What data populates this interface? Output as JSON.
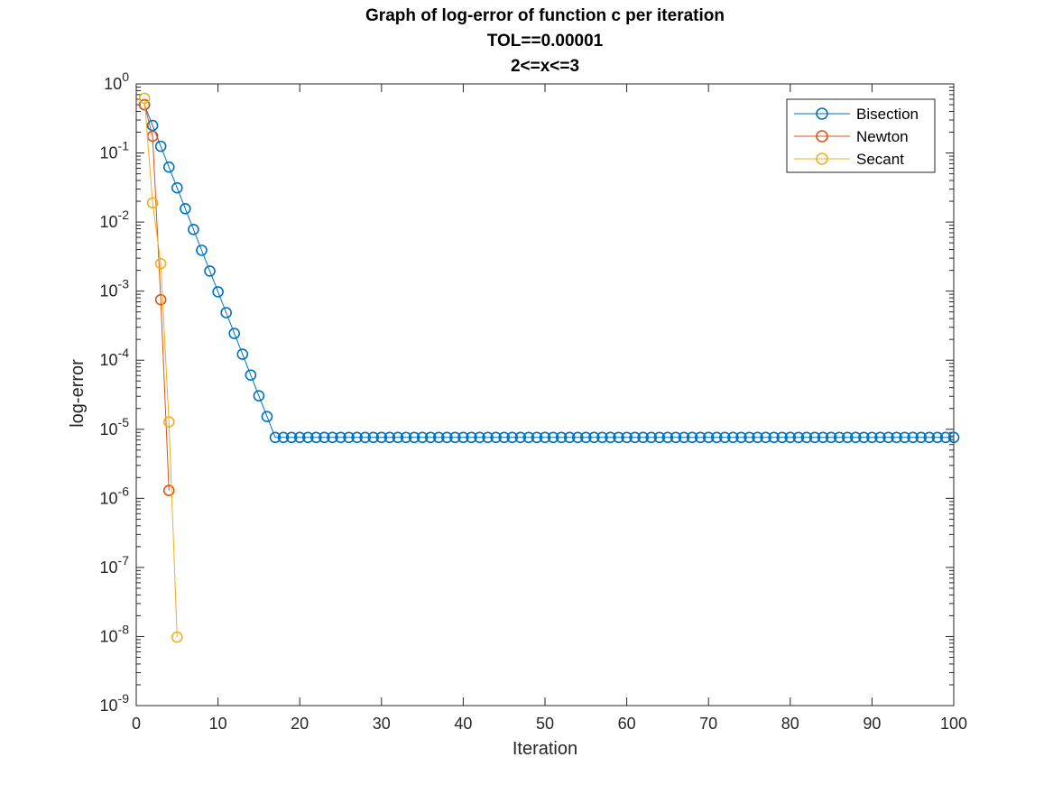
{
  "chart_data": {
    "type": "line",
    "title": [
      "Graph of log-error of function c per iteration",
      "TOL==0.00001",
      "2<=x<=3"
    ],
    "xlabel": "Iteration",
    "ylabel": "log-error",
    "xlim": [
      0,
      100
    ],
    "yscale": "log",
    "ylim": [
      1e-09,
      1
    ],
    "x_ticks": [
      0,
      10,
      20,
      30,
      40,
      50,
      60,
      70,
      80,
      90,
      100
    ],
    "y_ticks": [
      {
        "value": 1e-09,
        "base": "10",
        "exp": "-9"
      },
      {
        "value": 1e-08,
        "base": "10",
        "exp": "-8"
      },
      {
        "value": 1e-07,
        "base": "10",
        "exp": "-7"
      },
      {
        "value": 1e-06,
        "base": "10",
        "exp": "-6"
      },
      {
        "value": 1e-05,
        "base": "10",
        "exp": "-5"
      },
      {
        "value": 0.0001,
        "base": "10",
        "exp": "-4"
      },
      {
        "value": 0.001,
        "base": "10",
        "exp": "-3"
      },
      {
        "value": 0.01,
        "base": "10",
        "exp": "-2"
      },
      {
        "value": 0.1,
        "base": "10",
        "exp": "-1"
      },
      {
        "value": 1,
        "base": "10",
        "exp": "0"
      }
    ],
    "grid": false,
    "legend_position": "top-right",
    "series": [
      {
        "name": "Bisection",
        "color": "#0072BD",
        "bisection_pattern": {
          "start": 0.5,
          "ratio": 0.5,
          "halving_iterations": 16,
          "plateau_value": 7.63e-06,
          "last_iteration": 100
        },
        "x": [],
        "y": []
      },
      {
        "name": "Newton",
        "color": "#D95319",
        "x": [
          1,
          2,
          3,
          4
        ],
        "y": [
          0.5,
          0.175,
          0.00075,
          1.3e-06
        ]
      },
      {
        "name": "Secant",
        "color": "#EDB120",
        "x": [
          1,
          2,
          3,
          4,
          5
        ],
        "y": [
          0.62,
          0.019,
          0.0025,
          1.28e-05,
          9.8e-09
        ]
      }
    ]
  }
}
